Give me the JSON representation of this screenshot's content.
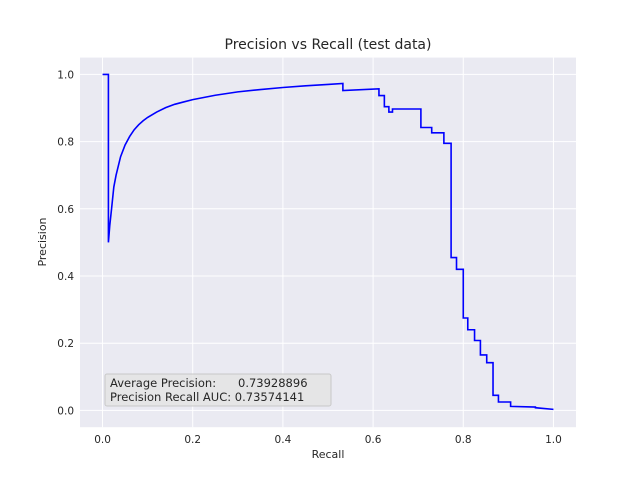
{
  "chart_data": {
    "type": "line",
    "title": "Precision vs Recall (test data)",
    "xlabel": "Recall",
    "ylabel": "Precision",
    "xlim": [
      -0.05,
      1.05
    ],
    "ylim": [
      -0.05,
      1.05
    ],
    "xticks": [
      0.0,
      0.2,
      0.4,
      0.6,
      0.8,
      1.0
    ],
    "yticks": [
      0.0,
      0.2,
      0.4,
      0.6,
      0.8,
      1.0
    ],
    "xtick_labels": [
      "0.0",
      "0.2",
      "0.4",
      "0.6",
      "0.8",
      "1.0"
    ],
    "ytick_labels": [
      "0.0",
      "0.2",
      "0.4",
      "0.6",
      "0.8",
      "1.0"
    ],
    "grid": true,
    "line_color": "#0000ff",
    "background_color": "#eaeaf2",
    "grid_color": "#ffffff",
    "annotation": {
      "line1": "Average Precision:      0.73928896",
      "line2": "Precision Recall AUC: 0.73574141",
      "placement": "bottom-left"
    },
    "series": [
      {
        "x": [
          0.0,
          0.013,
          0.013,
          0.016,
          0.02,
          0.025,
          0.03,
          0.04,
          0.05,
          0.06,
          0.07,
          0.08,
          0.09,
          0.1,
          0.12,
          0.14,
          0.16,
          0.18,
          0.2,
          0.25,
          0.3,
          0.35,
          0.4,
          0.45,
          0.5,
          0.533,
          0.533,
          0.613,
          0.613,
          0.625,
          0.625,
          0.635,
          0.635,
          0.643,
          0.643,
          0.706,
          0.706,
          0.73,
          0.73,
          0.735,
          0.735,
          0.757,
          0.757,
          0.77,
          0.77,
          0.773,
          0.773,
          0.785,
          0.785,
          0.8,
          0.8,
          0.81,
          0.81,
          0.825,
          0.825,
          0.838,
          0.838,
          0.852,
          0.852,
          0.866,
          0.866,
          0.878,
          0.878,
          0.905,
          0.905,
          0.96,
          0.96,
          1.0
        ],
        "y": [
          1.0,
          1.0,
          0.5,
          0.55,
          0.6,
          0.665,
          0.7,
          0.755,
          0.79,
          0.815,
          0.835,
          0.85,
          0.862,
          0.872,
          0.888,
          0.901,
          0.911,
          0.918,
          0.925,
          0.938,
          0.948,
          0.955,
          0.961,
          0.966,
          0.97,
          0.973,
          0.952,
          0.957,
          0.937,
          0.937,
          0.904,
          0.904,
          0.888,
          0.888,
          0.897,
          0.897,
          0.842,
          0.842,
          0.826,
          0.826,
          0.826,
          0.826,
          0.795,
          0.795,
          0.795,
          0.795,
          0.455,
          0.455,
          0.42,
          0.42,
          0.275,
          0.275,
          0.24,
          0.24,
          0.208,
          0.208,
          0.165,
          0.165,
          0.142,
          0.142,
          0.045,
          0.045,
          0.025,
          0.025,
          0.012,
          0.01,
          0.008,
          0.003
        ]
      }
    ]
  }
}
